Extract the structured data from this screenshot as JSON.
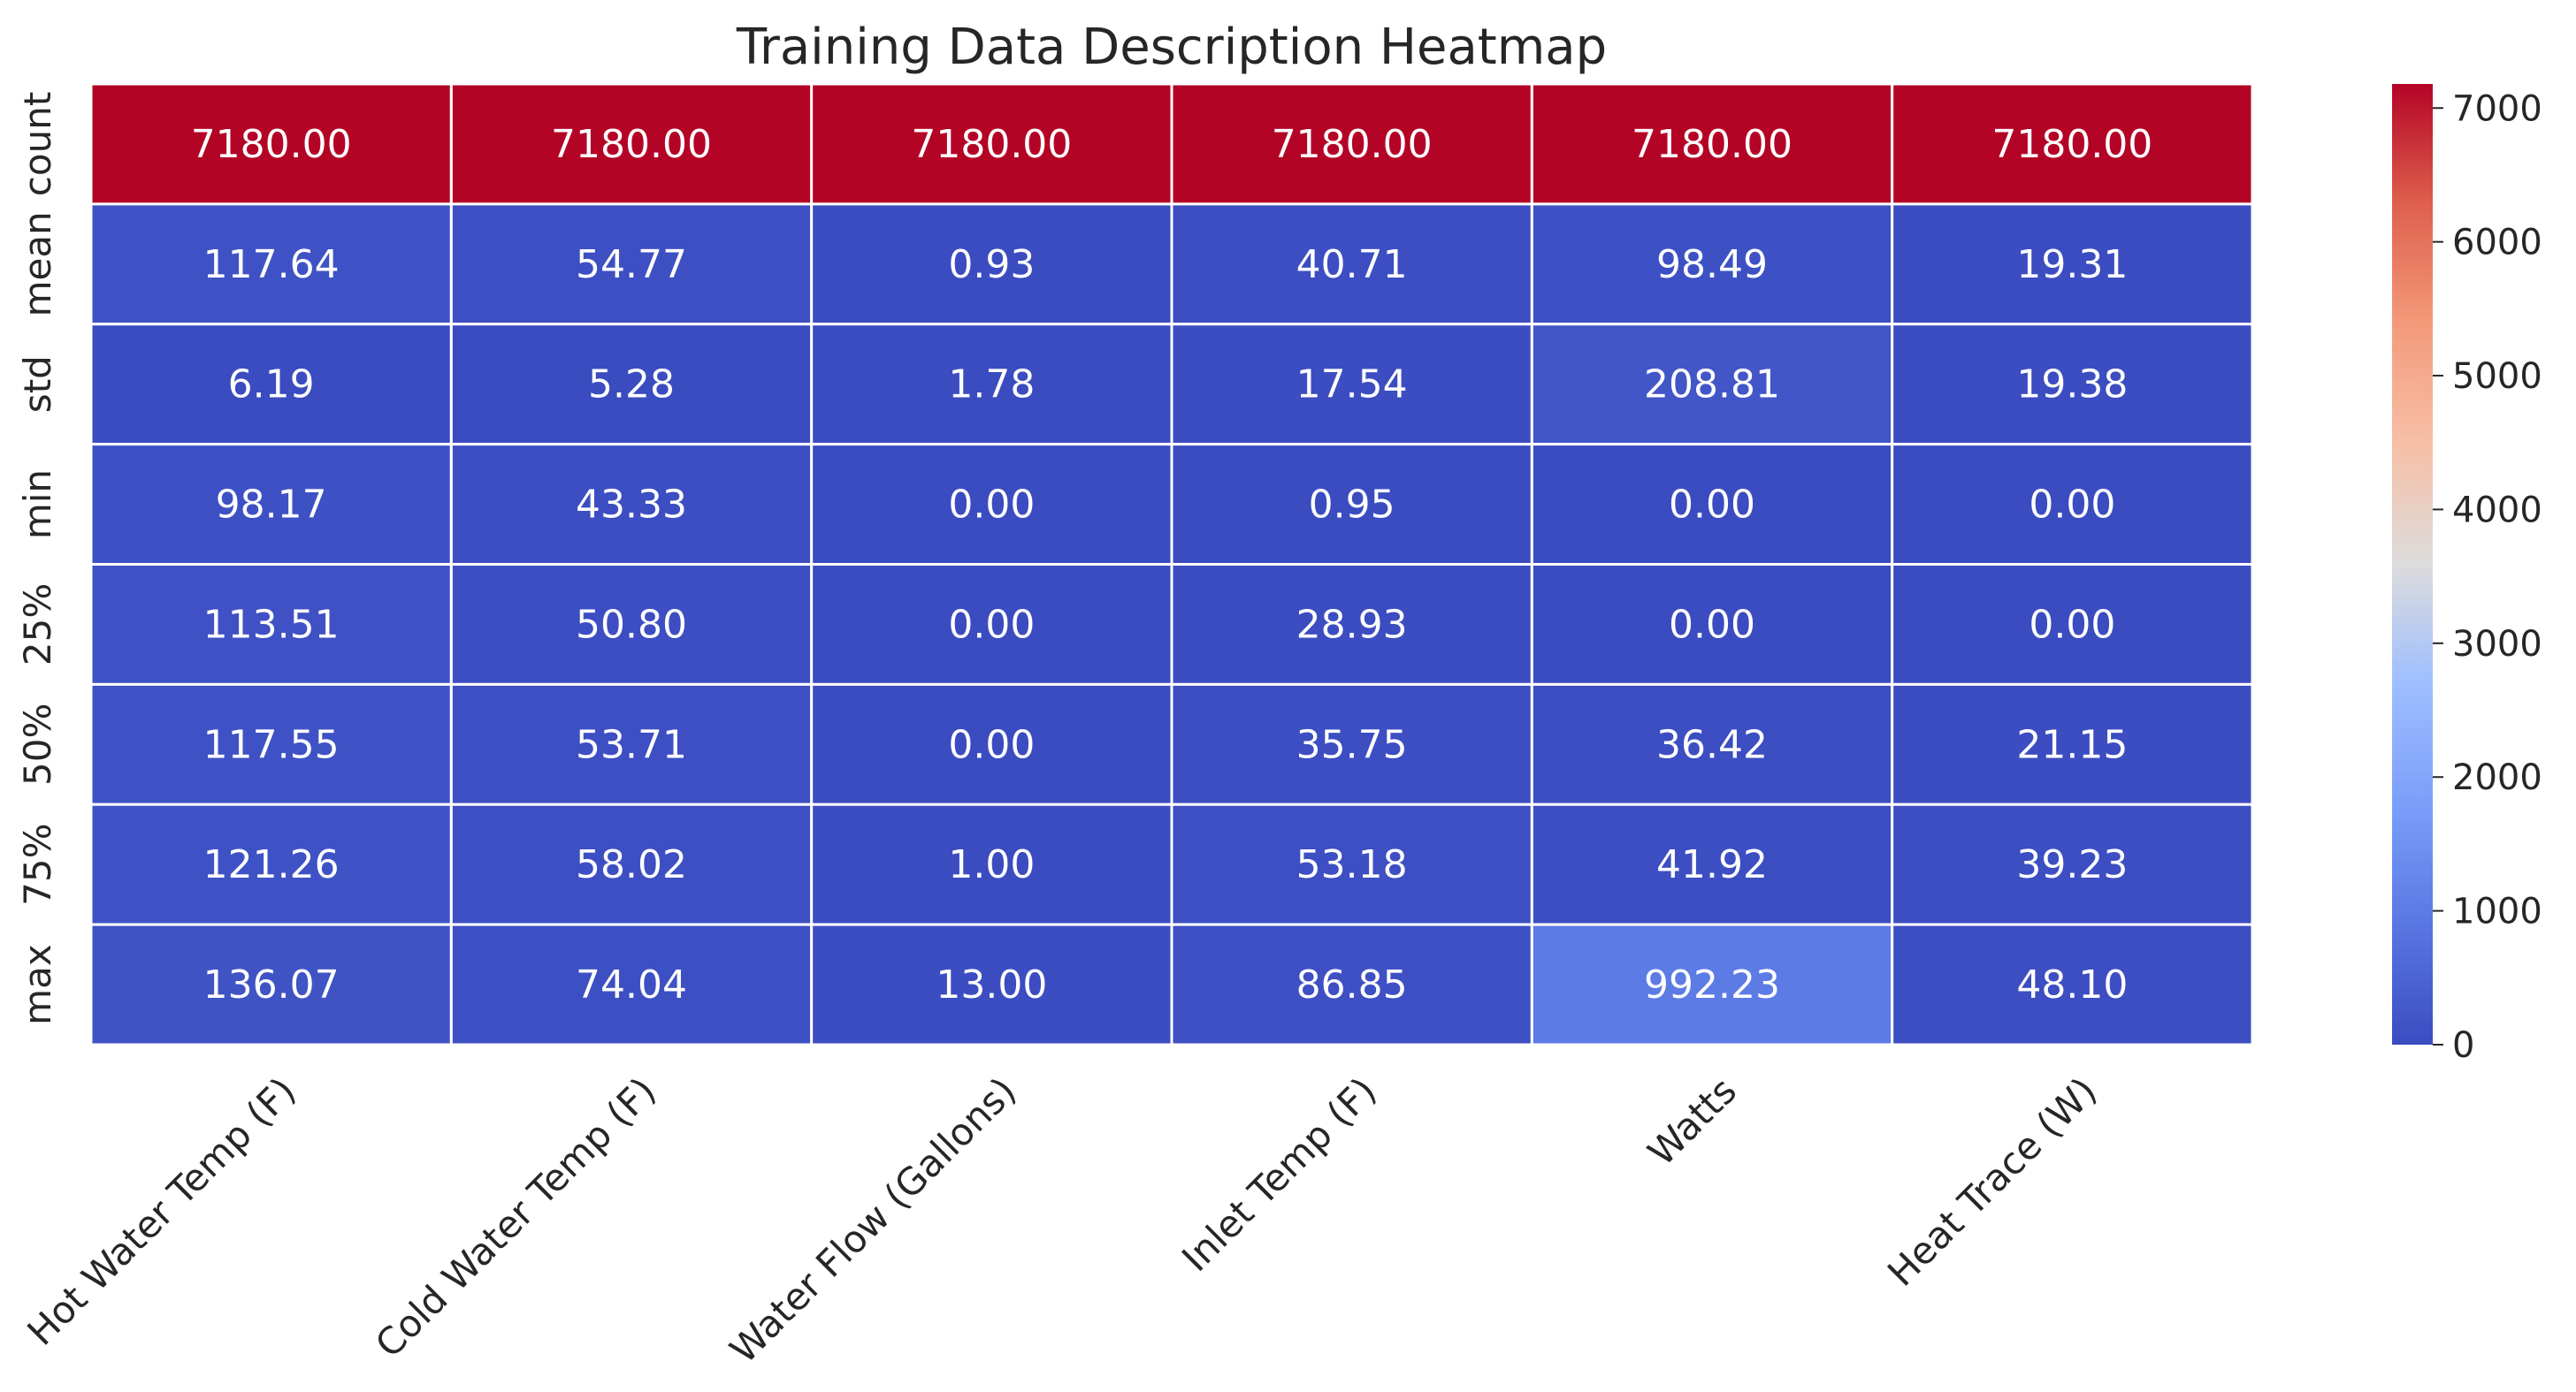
{
  "chart_data": {
    "type": "heatmap",
    "title": "Training Data Description Heatmap",
    "xlabel": "",
    "ylabel": "",
    "columns": [
      "Hot Water Temp (F)",
      "Cold Water Temp (F)",
      "Water Flow (Gallons)",
      "Inlet Temp (F)",
      "Watts",
      "Heat Trace (W)"
    ],
    "rows": [
      "count",
      "mean",
      "std",
      "min",
      "25%",
      "50%",
      "75%",
      "max"
    ],
    "values": [
      [
        7180.0,
        7180.0,
        7180.0,
        7180.0,
        7180.0,
        7180.0
      ],
      [
        117.64,
        54.77,
        0.93,
        40.71,
        98.49,
        19.31
      ],
      [
        6.19,
        5.28,
        1.78,
        17.54,
        208.81,
        19.38
      ],
      [
        98.17,
        43.33,
        0.0,
        0.95,
        0.0,
        0.0
      ],
      [
        113.51,
        50.8,
        0.0,
        28.93,
        0.0,
        0.0
      ],
      [
        117.55,
        53.71,
        0.0,
        35.75,
        36.42,
        21.15
      ],
      [
        121.26,
        58.02,
        1.0,
        53.18,
        41.92,
        39.23
      ],
      [
        136.07,
        74.04,
        13.0,
        86.85,
        992.23,
        48.1
      ]
    ],
    "cell_labels": [
      [
        "7180.00",
        "7180.00",
        "7180.00",
        "7180.00",
        "7180.00",
        "7180.00"
      ],
      [
        "117.64",
        "54.77",
        "0.93",
        "40.71",
        "98.49",
        "19.31"
      ],
      [
        "6.19",
        "5.28",
        "1.78",
        "17.54",
        "208.81",
        "19.38"
      ],
      [
        "98.17",
        "43.33",
        "0.00",
        "0.95",
        "0.00",
        "0.00"
      ],
      [
        "113.51",
        "50.80",
        "0.00",
        "28.93",
        "0.00",
        "0.00"
      ],
      [
        "117.55",
        "53.71",
        "0.00",
        "35.75",
        "36.42",
        "21.15"
      ],
      [
        "121.26",
        "58.02",
        "1.00",
        "53.18",
        "41.92",
        "39.23"
      ],
      [
        "136.07",
        "74.04",
        "13.00",
        "86.85",
        "992.23",
        "48.10"
      ]
    ],
    "colormap": "coolwarm",
    "vmin": 0,
    "vmax": 7180,
    "colorbar": {
      "ticks": [
        0,
        1000,
        2000,
        3000,
        4000,
        5000,
        6000,
        7000
      ],
      "tick_labels": [
        "0",
        "1000",
        "2000",
        "3000",
        "4000",
        "5000",
        "6000",
        "7000"
      ]
    },
    "colormap_stops": [
      [
        "0.0",
        "#3b4cc0"
      ],
      [
        "0.125",
        "#5977e3"
      ],
      [
        "0.25",
        "#7b9ff9"
      ],
      [
        "0.375",
        "#9ebeff"
      ],
      [
        "0.5",
        "#dddcdc"
      ],
      [
        "0.625",
        "#f6bfa6"
      ],
      [
        "0.75",
        "#f49a7b"
      ],
      [
        "0.875",
        "#de604d"
      ],
      [
        "1.0",
        "#b40426"
      ]
    ],
    "grid_line_color": "#ffffff"
  }
}
